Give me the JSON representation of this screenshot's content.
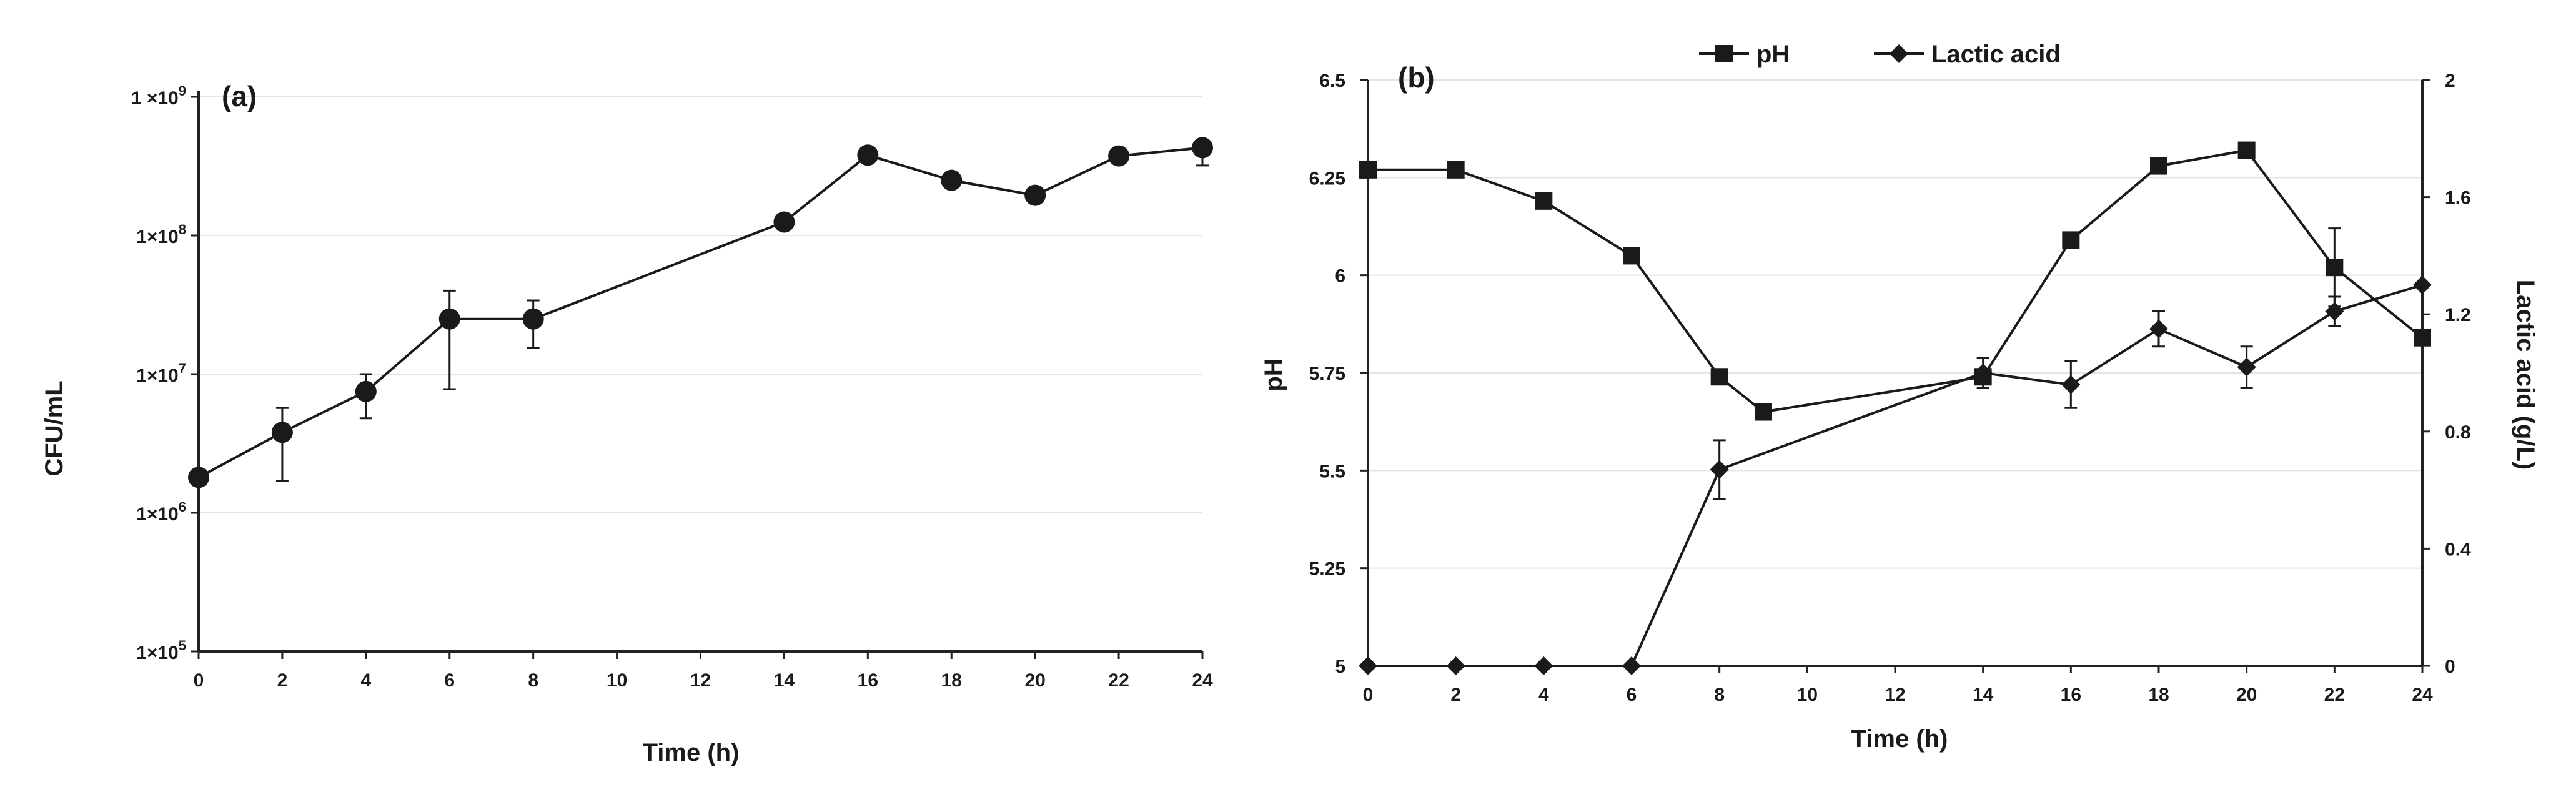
{
  "colors": {
    "ink": "#1a1a1a",
    "grid": "#e4e4e4",
    "background": "#ffffff"
  },
  "chart_data": [
    {
      "type": "line",
      "panel_label": "(a)",
      "xlabel": "Time (h)",
      "ylabel": "CFU/mL",
      "x_ticks": [
        0,
        2,
        4,
        6,
        8,
        10,
        12,
        14,
        16,
        18,
        20,
        22,
        24
      ],
      "xlim": [
        0,
        24
      ],
      "yscale": "log",
      "ylim": [
        100000,
        1000000000
      ],
      "y_ticks": [
        {
          "value": 100000,
          "base": "1×10",
          "exp": "5"
        },
        {
          "value": 1000000,
          "base": "1×10",
          "exp": "6"
        },
        {
          "value": 10000000,
          "base": "1×10",
          "exp": "7"
        },
        {
          "value": 100000000,
          "base": "1×10",
          "exp": "8"
        },
        {
          "value": 1000000000,
          "base": "1 ×10",
          "exp": "9"
        }
      ],
      "grid": true,
      "series": [
        {
          "marker": "circle",
          "x": [
            0,
            2,
            4,
            6,
            8,
            14,
            16,
            18,
            20,
            22,
            24
          ],
          "y": [
            1800000,
            3800000,
            7500000,
            25000000,
            25000000,
            125000000,
            380000000,
            250000000,
            195000000,
            375000000,
            430000000
          ],
          "err_low": [
            1800000,
            1700000,
            4800000,
            7800000,
            15500000,
            125000000,
            380000000,
            250000000,
            195000000,
            375000000,
            320000000
          ],
          "err_high": [
            1800000,
            5700000,
            10000000,
            40000000,
            34000000,
            125000000,
            380000000,
            250000000,
            195000000,
            375000000,
            430000000
          ]
        }
      ]
    },
    {
      "type": "line",
      "panel_label": "(b)",
      "xlabel": "Time (h)",
      "ylabel": "pH",
      "y2label": "Lactic acid (g/L)",
      "x_ticks": [
        0,
        2,
        4,
        6,
        8,
        10,
        12,
        14,
        16,
        18,
        20,
        22,
        24
      ],
      "xlim": [
        0,
        24
      ],
      "ylim": [
        5,
        6.5
      ],
      "y_ticks": [
        "5",
        "5.25",
        "5.5",
        "5.75",
        "6",
        "6.25",
        "6.5"
      ],
      "y2lim": [
        0,
        2
      ],
      "y2_ticks": [
        "0",
        "0.4",
        "0.8",
        "1.2",
        "1.6",
        "2"
      ],
      "grid": true,
      "legend_position": "top",
      "series": [
        {
          "name": "pH",
          "marker": "square",
          "axis": "left",
          "x": [
            0,
            2,
            4,
            6,
            8,
            9,
            14,
            16,
            18,
            20,
            22,
            24
          ],
          "y": [
            6.27,
            6.27,
            6.19,
            6.05,
            5.74,
            5.65,
            5.74,
            6.09,
            6.28,
            6.32,
            6.02,
            5.84
          ],
          "err_low": [
            6.27,
            6.27,
            6.19,
            6.05,
            5.74,
            5.65,
            5.74,
            6.09,
            6.28,
            6.32,
            5.92,
            5.84
          ],
          "err_high": [
            6.27,
            6.27,
            6.19,
            6.05,
            5.74,
            5.65,
            5.74,
            6.09,
            6.28,
            6.32,
            6.12,
            5.84
          ]
        },
        {
          "name": "Lactic acid",
          "marker": "diamond",
          "axis": "right",
          "x": [
            0,
            2,
            4,
            6,
            8,
            14,
            16,
            18,
            20,
            22,
            24
          ],
          "y": [
            0,
            0,
            0,
            0,
            0.67,
            1.0,
            0.96,
            1.15,
            1.02,
            1.21,
            1.3
          ],
          "err_low": [
            0,
            0,
            0,
            0,
            0.57,
            0.95,
            0.88,
            1.09,
            0.95,
            1.16,
            1.3
          ],
          "err_high": [
            0,
            0,
            0,
            0,
            0.77,
            1.05,
            1.04,
            1.21,
            1.09,
            1.26,
            1.3
          ]
        }
      ]
    }
  ]
}
